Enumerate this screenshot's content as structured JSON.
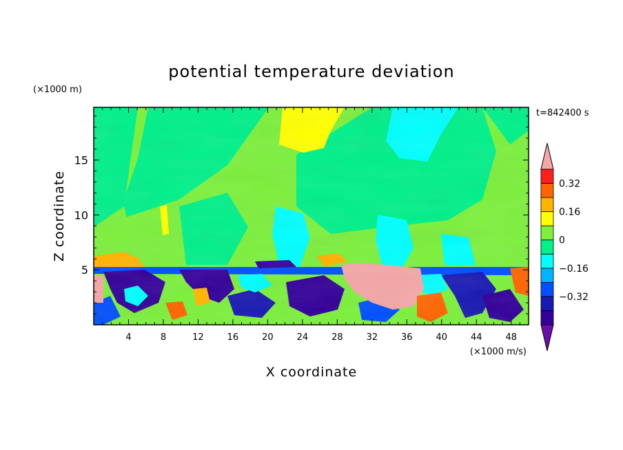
{
  "chart_data": {
    "type": "heatmap",
    "title": "potential temperature deviation",
    "xlabel": "X coordinate",
    "ylabel": "Z coordinate",
    "x_unit": "(×1000 m/s)",
    "y_unit": "(×1000 m)",
    "time_label": "t=842400 s",
    "xlim": [
      0,
      50
    ],
    "ylim": [
      0,
      19.8
    ],
    "x_ticks": [
      4,
      8,
      12,
      16,
      20,
      24,
      28,
      32,
      36,
      40,
      44,
      48
    ],
    "y_ticks": [
      5,
      10,
      15
    ],
    "colorbar": {
      "levels": [
        -0.48,
        -0.4,
        -0.32,
        -0.24,
        -0.16,
        -0.08,
        0,
        0.08,
        0.16,
        0.24,
        0.32,
        0.4
      ],
      "colors": [
        "#6a0fae",
        "#330099",
        "#1919b3",
        "#0050ff",
        "#00b4ff",
        "#00ffff",
        "#00f08a",
        "#7cf03c",
        "#ffff00",
        "#ffb400",
        "#ff6400",
        "#ff1e1e",
        "#f5a6a6"
      ],
      "labels": [
        -0.32,
        -0.16,
        0,
        0.16,
        0.32
      ],
      "extend": "both"
    },
    "field_summary": {
      "upper_layer": "values mostly between 0 and 0.16, with small negative regions",
      "lower_layer": "strong fluctuations below about z = 5, ranging below -0.4 to above 0.4"
    }
  }
}
